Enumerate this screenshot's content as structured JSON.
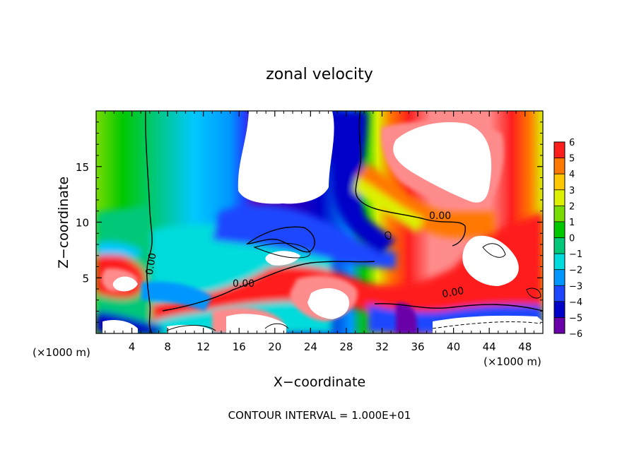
{
  "chart_data": {
    "type": "heatmap",
    "title": "zonal velocity",
    "xlabel": "X−coordinate",
    "ylabel": "Z−coordinate",
    "x_unit_left": "(×1000 m)",
    "x_unit_right": "(×1000 m)",
    "footer": "CONTOUR INTERVAL = 1.000E+01",
    "xlim": [
      0,
      50
    ],
    "ylim": [
      0,
      20
    ],
    "x_ticks": [
      4,
      8,
      12,
      16,
      20,
      24,
      28,
      32,
      36,
      40,
      44,
      48
    ],
    "y_ticks": [
      5,
      10,
      15
    ],
    "colorbar": {
      "levels": [
        -6,
        -5,
        -4,
        -3,
        -2,
        -1,
        0,
        1,
        2,
        3,
        4,
        5,
        6
      ],
      "colors": [
        "#6a00a8",
        "#0000c8",
        "#1e46ff",
        "#0096ff",
        "#00dcdc",
        "#00c878",
        "#00c800",
        "#78dc00",
        "#dcf000",
        "#ffc800",
        "#ff7800",
        "#ff1e1e",
        "#ff8c8c"
      ],
      "saturation_color": "#ffffff"
    },
    "contour_labels": [
      {
        "text": "0.00",
        "x": 6.5,
        "z": 6.2,
        "rotate": -80
      },
      {
        "text": "0.00",
        "x": 16.5,
        "z": 4.2,
        "rotate": 0
      },
      {
        "text": "0.00",
        "x": 38.5,
        "z": 10.3,
        "rotate": 0
      },
      {
        "text": "0.00",
        "x": 40.0,
        "z": 3.4,
        "rotate": -10
      }
    ],
    "contour_interval": 10
  }
}
